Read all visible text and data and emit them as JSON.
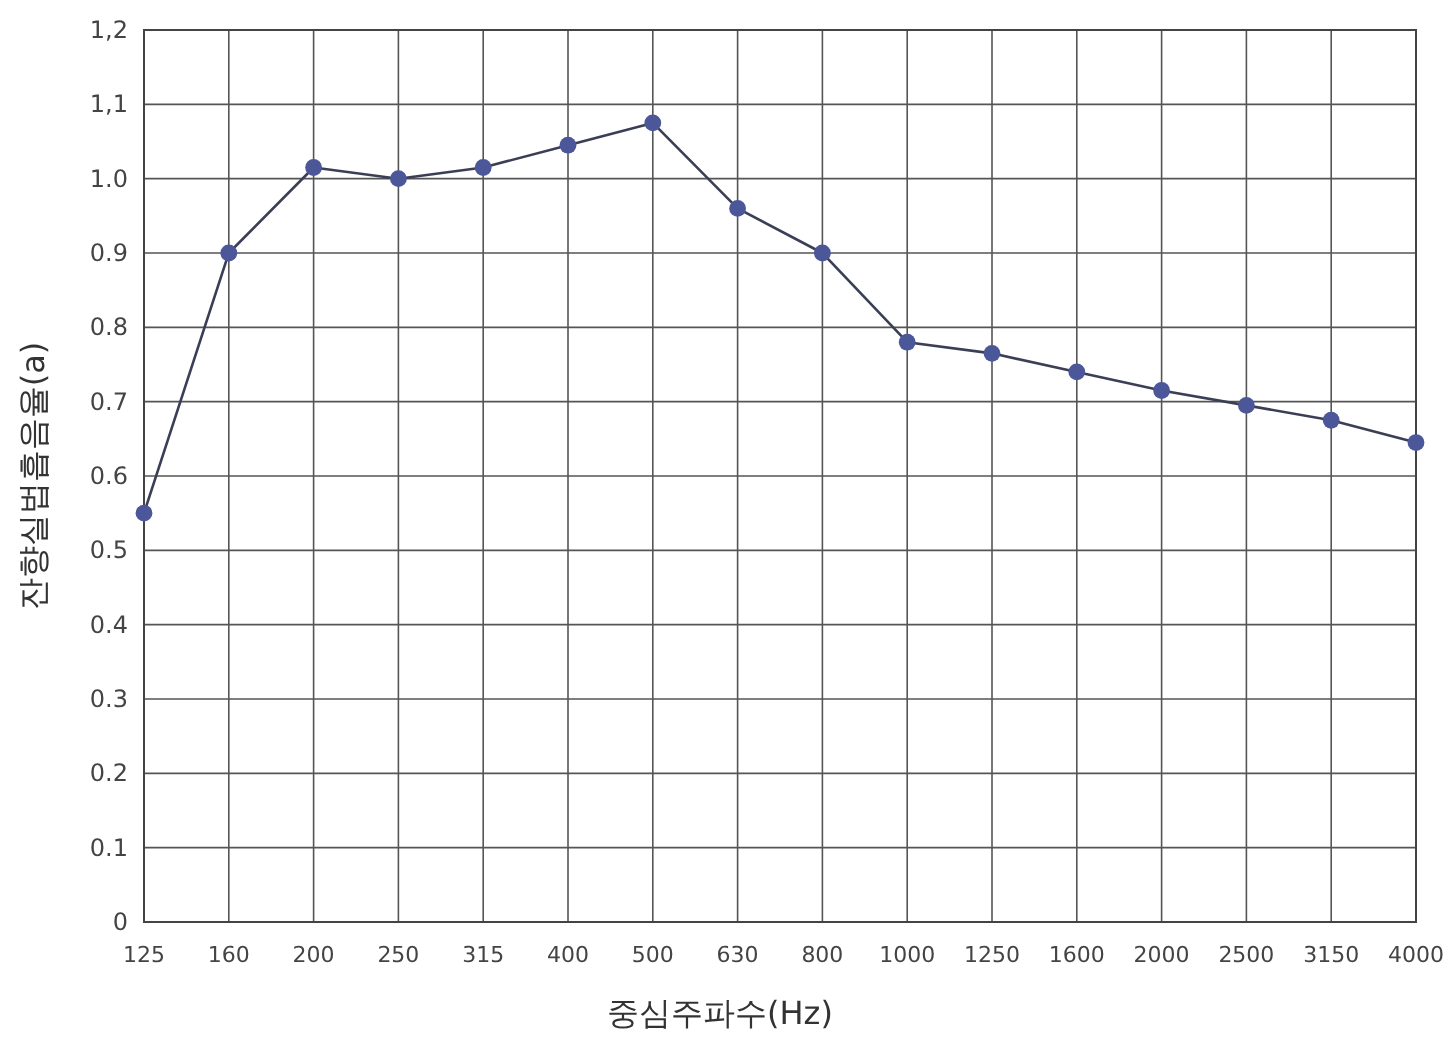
{
  "chart_data": {
    "type": "line",
    "xlabel": "중심주파수(Hz)",
    "ylabel": "잔향실법흡음율(a)",
    "categories": [
      "125",
      "160",
      "200",
      "250",
      "315",
      "400",
      "500",
      "630",
      "800",
      "1000",
      "1250",
      "1600",
      "2000",
      "2500",
      "3150",
      "4000"
    ],
    "series": [
      {
        "color": "#4b5798",
        "values": [
          0.55,
          0.9,
          1.015,
          1.0,
          1.015,
          1.045,
          1.075,
          0.96,
          0.9,
          0.78,
          0.765,
          0.74,
          0.715,
          0.695,
          0.675,
          0.645
        ]
      }
    ],
    "ylim": [
      0,
      1.2
    ],
    "yticks": [
      {
        "value": 0,
        "label": "0"
      },
      {
        "value": 0.1,
        "label": "0.1"
      },
      {
        "value": 0.2,
        "label": "0.2"
      },
      {
        "value": 0.3,
        "label": "0.3"
      },
      {
        "value": 0.4,
        "label": "0.4"
      },
      {
        "value": 0.5,
        "label": "0.5"
      },
      {
        "value": 0.6,
        "label": "0.6"
      },
      {
        "value": 0.7,
        "label": "0.7"
      },
      {
        "value": 0.8,
        "label": "0.8"
      },
      {
        "value": 0.9,
        "label": "0.9"
      },
      {
        "value": 1.0,
        "label": "1.0"
      },
      {
        "value": 1.1,
        "label": "1,1"
      },
      {
        "value": 1.2,
        "label": "1,2"
      }
    ],
    "grid": true,
    "marker": "circle",
    "line_style": "solid"
  }
}
